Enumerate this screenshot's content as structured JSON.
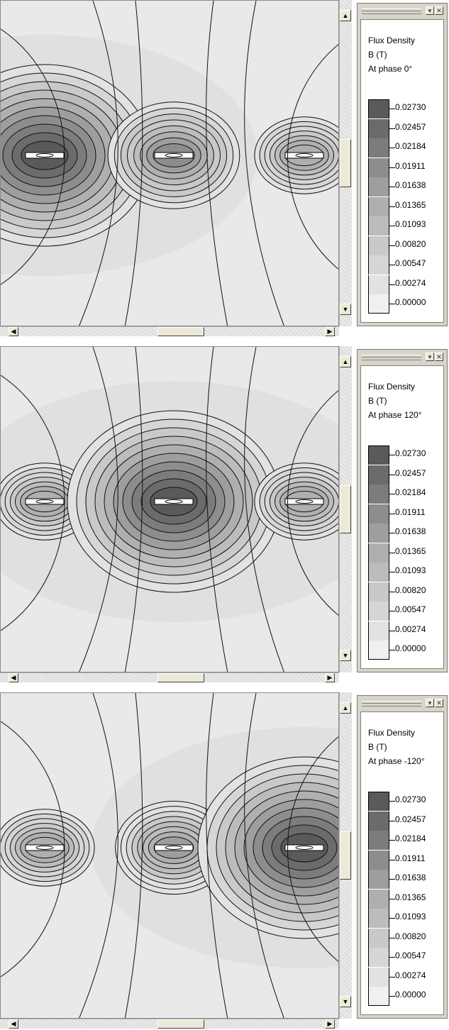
{
  "legend": {
    "title": "Flux Density",
    "unit": "B (T)",
    "levels": [
      "0.02730",
      "0.02457",
      "0.02184",
      "0.01911",
      "0.01638",
      "0.01365",
      "0.01093",
      "0.00820",
      "0.00547",
      "0.00274",
      "0.00000"
    ],
    "shades": [
      "#5a5a5a",
      "#6b6b6b",
      "#7c7c7c",
      "#8d8d8d",
      "#9e9e9e",
      "#afafaf",
      "#bcbcbc",
      "#c9c9c9",
      "#d6d6d6",
      "#e2e2e2",
      "#f0f0f0"
    ]
  },
  "panels": [
    {
      "phase": "At phase 0°",
      "strength": [
        1.0,
        0.7,
        0.55
      ]
    },
    {
      "phase": "At phase 120°",
      "strength": [
        0.55,
        1.0,
        0.55
      ]
    },
    {
      "phase": "At phase -120°",
      "strength": [
        0.55,
        0.6,
        1.0
      ]
    }
  ],
  "icons": {
    "up": "▲",
    "down": "▼",
    "left": "◀",
    "right": "▶",
    "minimize": "▾",
    "close": "✕"
  }
}
